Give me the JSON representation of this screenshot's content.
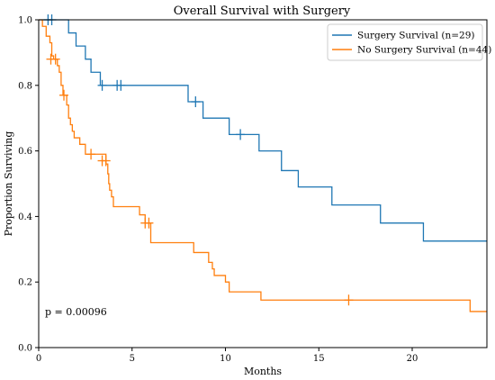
{
  "chart_data": {
    "type": "line",
    "title": "Overall Survival with Surgery",
    "xlabel": "Months",
    "ylabel": "Proportion Surviving",
    "xlim": [
      0,
      24
    ],
    "ylim": [
      0.0,
      1.0
    ],
    "xticks": [
      0,
      5,
      10,
      15,
      20
    ],
    "yticks": [
      0.0,
      0.2,
      0.4,
      0.6,
      0.8,
      1.0
    ],
    "yticklabels": [
      "0.0",
      "0.2",
      "0.4",
      "0.6",
      "0.8",
      "1.0"
    ],
    "grid": false,
    "legend_position": "top-right",
    "annotation": "p = 0.00096",
    "series": [
      {
        "name": "Surgery Survival (n=29)",
        "color": "#1f77b4",
        "steps": [
          [
            0,
            1.0
          ],
          [
            1.6,
            1.0
          ],
          [
            1.6,
            0.96
          ],
          [
            2.0,
            0.92
          ],
          [
            2.5,
            0.88
          ],
          [
            2.8,
            0.84
          ],
          [
            3.3,
            0.8
          ],
          [
            8.0,
            0.8
          ],
          [
            8.0,
            0.75
          ],
          [
            8.8,
            0.75
          ],
          [
            8.8,
            0.7
          ],
          [
            10.2,
            0.7
          ],
          [
            10.2,
            0.65
          ],
          [
            11.8,
            0.65
          ],
          [
            11.8,
            0.6
          ],
          [
            13.0,
            0.6
          ],
          [
            13.0,
            0.54
          ],
          [
            13.9,
            0.54
          ],
          [
            13.9,
            0.49
          ],
          [
            15.7,
            0.49
          ],
          [
            15.7,
            0.435
          ],
          [
            18.3,
            0.435
          ],
          [
            18.3,
            0.38
          ],
          [
            20.6,
            0.38
          ],
          [
            20.6,
            0.325
          ],
          [
            24,
            0.325
          ]
        ],
        "censor_x": [
          0.5,
          0.7,
          3.4,
          4.2,
          4.4,
          8.4,
          10.8
        ],
        "censor_y": [
          1.0,
          1.0,
          0.8,
          0.8,
          0.8,
          0.75,
          0.65
        ]
      },
      {
        "name": "No Surgery Survival (n=44)",
        "color": "#ff7f0e",
        "steps": [
          [
            0,
            1.0
          ],
          [
            0.2,
            0.98
          ],
          [
            0.4,
            0.95
          ],
          [
            0.6,
            0.93
          ],
          [
            0.7,
            0.89
          ],
          [
            0.8,
            0.88
          ],
          [
            1.0,
            0.86
          ],
          [
            1.1,
            0.84
          ],
          [
            1.2,
            0.8
          ],
          [
            1.3,
            0.77
          ],
          [
            1.5,
            0.74
          ],
          [
            1.6,
            0.7
          ],
          [
            1.7,
            0.68
          ],
          [
            1.8,
            0.66
          ],
          [
            1.9,
            0.64
          ],
          [
            2.2,
            0.62
          ],
          [
            2.5,
            0.59
          ],
          [
            3.4,
            0.59
          ],
          [
            3.6,
            0.56
          ],
          [
            3.7,
            0.53
          ],
          [
            3.75,
            0.5
          ],
          [
            3.8,
            0.48
          ],
          [
            3.9,
            0.46
          ],
          [
            4.0,
            0.43
          ],
          [
            5.4,
            0.43
          ],
          [
            5.4,
            0.405
          ],
          [
            5.7,
            0.38
          ],
          [
            6.0,
            0.32
          ],
          [
            8.3,
            0.32
          ],
          [
            8.3,
            0.29
          ],
          [
            9.0,
            0.29
          ],
          [
            9.1,
            0.26
          ],
          [
            9.3,
            0.24
          ],
          [
            9.4,
            0.22
          ],
          [
            10.0,
            0.2
          ],
          [
            10.2,
            0.17
          ],
          [
            11.9,
            0.17
          ],
          [
            11.9,
            0.145
          ],
          [
            23.1,
            0.145
          ],
          [
            23.1,
            0.11
          ],
          [
            24,
            0.11
          ]
        ],
        "censor_x": [
          0.65,
          0.9,
          1.35,
          2.8,
          3.4,
          3.6,
          5.7,
          5.9,
          16.6
        ],
        "censor_y": [
          0.88,
          0.88,
          0.77,
          0.59,
          0.57,
          0.57,
          0.38,
          0.38,
          0.145
        ]
      }
    ]
  }
}
